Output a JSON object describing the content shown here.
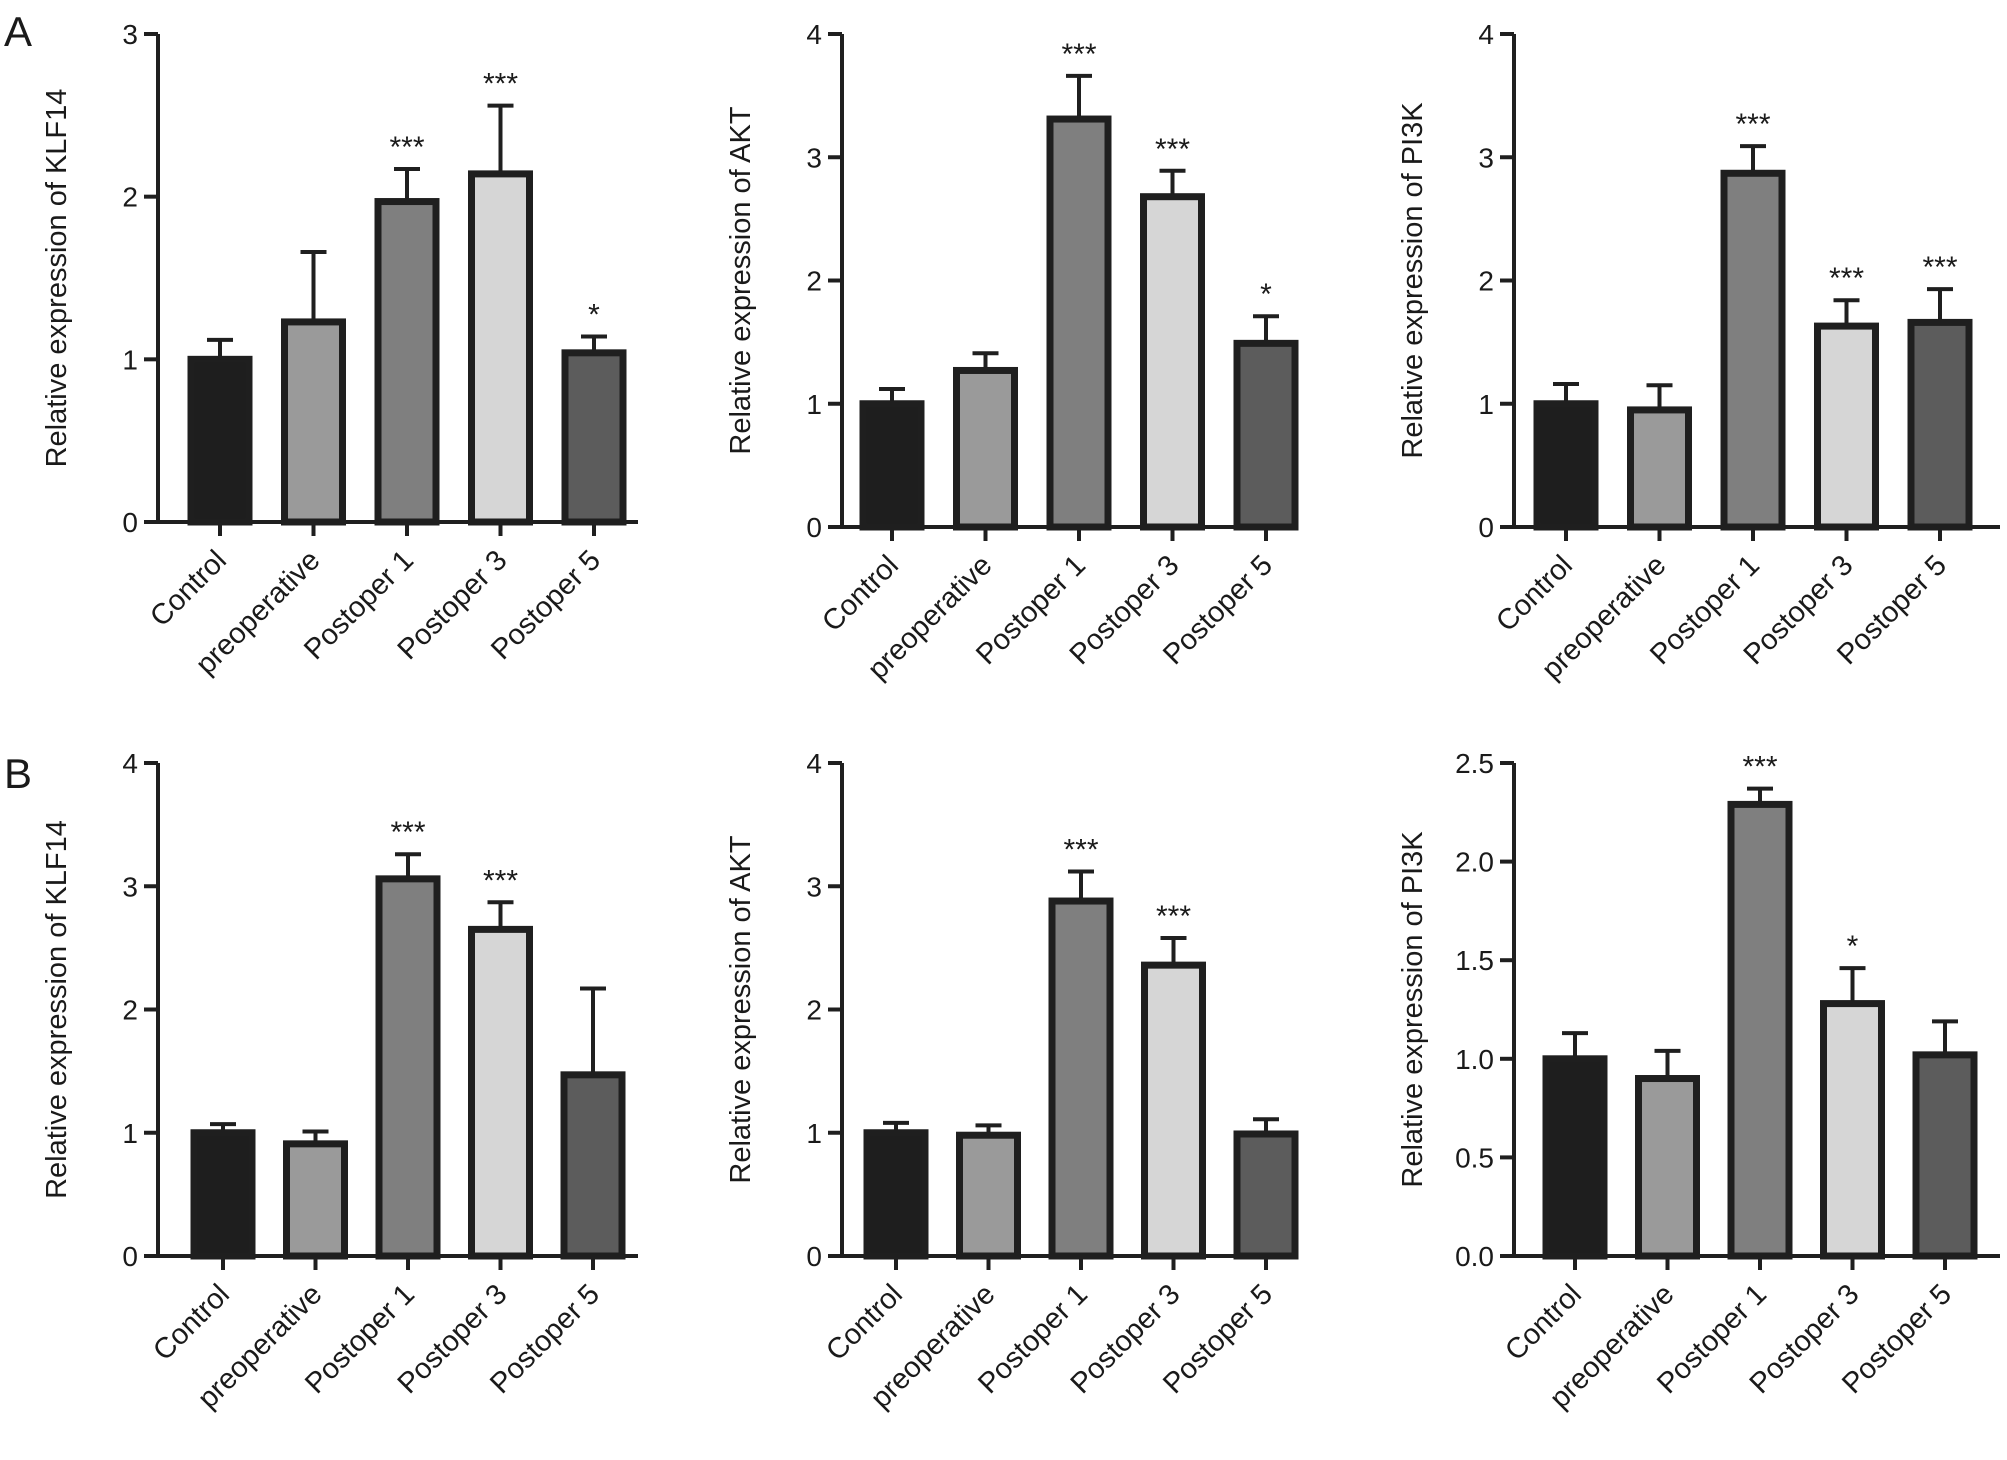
{
  "colors": {
    "bar_fills": [
      "#1e1e1e",
      "#9a9a9a",
      "#7f7f7f",
      "#d6d6d6",
      "#5c5c5c"
    ],
    "stroke": "#1f1f1f",
    "text": "#1a1a1a"
  },
  "panels": [
    {
      "label": "A"
    },
    {
      "label": "B"
    }
  ],
  "chart_data": [
    {
      "type": "bar",
      "panel": "A",
      "categories": [
        "Control",
        "preoperative",
        "Postoper 1",
        "Postoper 3",
        "Postoper 5"
      ],
      "values": [
        1.0,
        1.23,
        1.97,
        2.14,
        1.04
      ],
      "errors": [
        0.12,
        0.43,
        0.2,
        0.42,
        0.1
      ],
      "significance": [
        "",
        "",
        "***",
        "***",
        "*"
      ],
      "ylabel": "Relative expression of KLF14",
      "ylim": [
        0,
        3
      ],
      "yticks": [
        "0",
        "1",
        "2",
        "3"
      ]
    },
    {
      "type": "bar",
      "panel": "A",
      "categories": [
        "Control",
        "preoperative",
        "Postoper 1",
        "Postoper 3",
        "Postoper 5"
      ],
      "values": [
        1.0,
        1.27,
        3.31,
        2.68,
        1.49
      ],
      "errors": [
        0.12,
        0.14,
        0.35,
        0.21,
        0.22
      ],
      "significance": [
        "",
        "",
        "***",
        "***",
        "*"
      ],
      "ylabel": "Relative expression of AKT",
      "ylim": [
        0,
        4
      ],
      "yticks": [
        "0",
        "1",
        "2",
        "3",
        "4"
      ]
    },
    {
      "type": "bar",
      "panel": "A",
      "categories": [
        "Control",
        "preoperative",
        "Postoper 1",
        "Postoper 3",
        "Postoper 5"
      ],
      "values": [
        1.0,
        0.95,
        2.87,
        1.63,
        1.66
      ],
      "errors": [
        0.16,
        0.2,
        0.22,
        0.21,
        0.27
      ],
      "significance": [
        "",
        "",
        "***",
        "***",
        "***"
      ],
      "ylabel": "Relative expression of PI3K",
      "ylim": [
        0,
        4
      ],
      "yticks": [
        "0",
        "1",
        "2",
        "3",
        "4"
      ]
    },
    {
      "type": "bar",
      "panel": "B",
      "categories": [
        "Control",
        "preoperative",
        "Postoper 1",
        "Postoper 3",
        "Postoper 5"
      ],
      "values": [
        1.0,
        0.91,
        3.06,
        2.65,
        1.47
      ],
      "errors": [
        0.07,
        0.1,
        0.2,
        0.22,
        0.7
      ],
      "significance": [
        "",
        "",
        "***",
        "***",
        ""
      ],
      "ylabel": "Relative expression of KLF14",
      "ylim": [
        0,
        4
      ],
      "yticks": [
        "0",
        "1",
        "2",
        "3",
        "4"
      ]
    },
    {
      "type": "bar",
      "panel": "B",
      "categories": [
        "Control",
        "preoperative",
        "Postoper 1",
        "Postoper 3",
        "Postoper 5"
      ],
      "values": [
        1.0,
        0.98,
        2.88,
        2.36,
        0.99
      ],
      "errors": [
        0.08,
        0.08,
        0.24,
        0.22,
        0.12
      ],
      "significance": [
        "",
        "",
        "***",
        "***",
        ""
      ],
      "ylabel": "Relative expression of AKT",
      "ylim": [
        0,
        4
      ],
      "yticks": [
        "0",
        "1",
        "2",
        "3",
        "4"
      ]
    },
    {
      "type": "bar",
      "panel": "B",
      "categories": [
        "Control",
        "preoperative",
        "Postoper 1",
        "Postoper 3",
        "Postoper 5"
      ],
      "values": [
        1.0,
        0.9,
        2.29,
        1.28,
        1.02
      ],
      "errors": [
        0.13,
        0.14,
        0.08,
        0.18,
        0.17
      ],
      "significance": [
        "",
        "",
        "***",
        "*",
        ""
      ],
      "ylabel": "Relative expression of PI3K",
      "ylim": [
        0,
        2.5
      ],
      "yticks": [
        "0.0",
        "0.5",
        "1.0",
        "1.5",
        "2.0",
        "2.5"
      ]
    }
  ]
}
